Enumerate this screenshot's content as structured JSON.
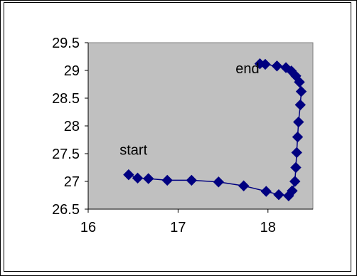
{
  "chart_data": {
    "type": "line",
    "title": "",
    "xlabel": "",
    "ylabel": "",
    "xlim": [
      16,
      18.5
    ],
    "ylim": [
      26.5,
      29.5
    ],
    "x_ticks": [
      16,
      17,
      18
    ],
    "y_ticks": [
      26.5,
      27,
      27.5,
      28,
      28.5,
      29,
      29.5
    ],
    "x_tick_labels": [
      "16",
      "17",
      "18"
    ],
    "y_tick_labels": [
      "26.5",
      "27",
      "27.5",
      "28",
      "28.5",
      "29",
      "29.5"
    ],
    "grid": false,
    "plot_background": "#c0c0c0",
    "series": [
      {
        "color": "#000080",
        "marker": "diamond",
        "x": [
          16.45,
          16.55,
          16.67,
          16.88,
          17.15,
          17.45,
          17.73,
          17.98,
          18.12,
          18.23,
          18.27,
          18.3,
          18.31,
          18.32,
          18.33,
          18.34,
          18.36,
          18.37,
          18.35,
          18.31,
          18.26,
          18.2,
          18.1,
          17.97,
          17.91
        ],
        "y": [
          27.12,
          27.06,
          27.05,
          27.02,
          27.02,
          26.99,
          26.92,
          26.82,
          26.76,
          26.74,
          26.83,
          27.0,
          27.25,
          27.52,
          27.8,
          28.07,
          28.38,
          28.62,
          28.79,
          28.9,
          28.99,
          29.05,
          29.08,
          29.11,
          29.12
        ]
      }
    ],
    "annotations": [
      {
        "text": "start",
        "x": 16.35,
        "y": 27.48
      },
      {
        "text": "end",
        "x": 17.64,
        "y": 28.95
      }
    ]
  }
}
